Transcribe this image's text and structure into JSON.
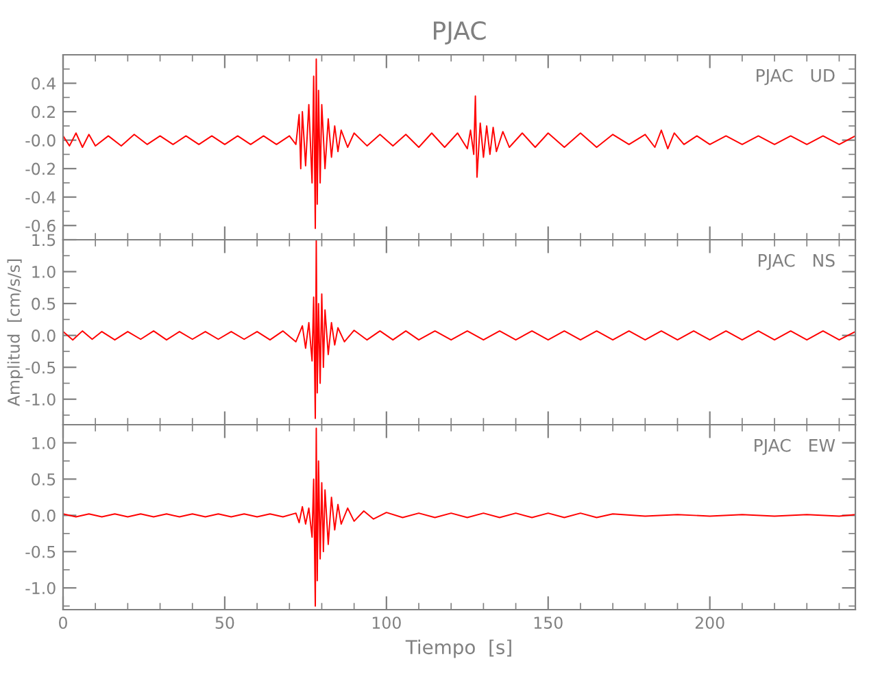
{
  "chart_data": [
    {
      "type": "line",
      "title": "PJAC",
      "annotations": [
        "PJAC   UD"
      ],
      "tick_labels": "y",
      "grid": false,
      "legend": false,
      "xlim": [
        0,
        245
      ],
      "xticks": [
        {
          "value": 0,
          "label": null
        },
        {
          "value": 50,
          "label": null
        },
        {
          "value": 100,
          "label": null
        },
        {
          "value": 150,
          "label": null
        },
        {
          "value": 200,
          "label": null
        }
      ],
      "ylim": [
        -0.7,
        0.6
      ],
      "yticks": [
        {
          "value": -0.6,
          "label": "-0.6"
        },
        {
          "value": -0.4,
          "label": "-0.4"
        },
        {
          "value": -0.2,
          "label": "-0.2"
        },
        {
          "value": 0.0,
          "label": "-0.0"
        },
        {
          "value": 0.2,
          "label": "0.2"
        },
        {
          "value": 0.4,
          "label": "0.4"
        }
      ],
      "series": [
        {
          "color": "#ff0000",
          "x": [
            0,
            2,
            4,
            6,
            8,
            10,
            14,
            18,
            22,
            26,
            30,
            34,
            38,
            42,
            46,
            50,
            54,
            58,
            62,
            66,
            70,
            72,
            73,
            73.5,
            74,
            75,
            76,
            77,
            77.5,
            78,
            78.3,
            78.6,
            79,
            79.5,
            80,
            81,
            82,
            83,
            84,
            85,
            86,
            88,
            90,
            94,
            98,
            102,
            106,
            110,
            114,
            118,
            122,
            125,
            126,
            127,
            127.5,
            128,
            129,
            130,
            131,
            132,
            133,
            134,
            136,
            138,
            142,
            146,
            150,
            155,
            160,
            165,
            170,
            175,
            180,
            183,
            185,
            187,
            189,
            192,
            196,
            200,
            205,
            210,
            215,
            220,
            225,
            230,
            235,
            240,
            245
          ],
          "values": [
            0.03,
            -0.04,
            0.05,
            -0.05,
            0.04,
            -0.04,
            0.03,
            -0.04,
            0.04,
            -0.03,
            0.03,
            -0.03,
            0.03,
            -0.03,
            0.03,
            -0.03,
            0.03,
            -0.03,
            0.03,
            -0.03,
            0.03,
            -0.03,
            0.18,
            -0.2,
            0.2,
            -0.18,
            0.25,
            -0.3,
            0.45,
            -0.62,
            0.57,
            -0.45,
            0.35,
            -0.3,
            0.25,
            -0.2,
            0.15,
            -0.12,
            0.1,
            -0.08,
            0.07,
            -0.05,
            0.05,
            -0.04,
            0.04,
            -0.04,
            0.04,
            -0.05,
            0.05,
            -0.05,
            0.05,
            -0.06,
            0.07,
            -0.1,
            0.31,
            -0.26,
            0.12,
            -0.12,
            0.1,
            -0.1,
            0.09,
            -0.08,
            0.06,
            -0.05,
            0.05,
            -0.05,
            0.05,
            -0.05,
            0.05,
            -0.05,
            0.04,
            -0.03,
            0.04,
            -0.05,
            0.07,
            -0.06,
            0.05,
            -0.03,
            0.03,
            -0.03,
            0.03,
            -0.03,
            0.03,
            -0.03,
            0.03,
            -0.03,
            0.03,
            -0.03,
            0.03
          ]
        }
      ]
    },
    {
      "type": "line",
      "ylabel": "Amplitud  [cm/s/s]",
      "annotations": [
        "PJAC   NS"
      ],
      "tick_labels": "y",
      "grid": false,
      "legend": false,
      "xlim": [
        0,
        245
      ],
      "xticks": [
        {
          "value": 0,
          "label": null
        },
        {
          "value": 50,
          "label": null
        },
        {
          "value": 100,
          "label": null
        },
        {
          "value": 150,
          "label": null
        },
        {
          "value": 200,
          "label": null
        }
      ],
      "ylim": [
        -1.4,
        1.5
      ],
      "yticks": [
        {
          "value": -1.0,
          "label": "-1.0"
        },
        {
          "value": -0.5,
          "label": "-0.5"
        },
        {
          "value": 0.0,
          "label": "0.0"
        },
        {
          "value": 0.5,
          "label": "0.5"
        },
        {
          "value": 1.0,
          "label": "1.0"
        },
        {
          "value": 1.5,
          "label": "1.5"
        }
      ],
      "series": [
        {
          "color": "#ff0000",
          "x": [
            0,
            3,
            6,
            9,
            12,
            16,
            20,
            24,
            28,
            32,
            36,
            40,
            44,
            48,
            52,
            56,
            60,
            64,
            68,
            72,
            74,
            75,
            76,
            77,
            77.5,
            78,
            78.3,
            78.6,
            79,
            79.5,
            80,
            80.5,
            81,
            82,
            83,
            84,
            85,
            87,
            90,
            94,
            98,
            102,
            106,
            110,
            115,
            120,
            125,
            130,
            135,
            140,
            145,
            150,
            155,
            160,
            165,
            170,
            175,
            180,
            185,
            190,
            195,
            200,
            205,
            210,
            215,
            220,
            225,
            230,
            235,
            240,
            245
          ],
          "values": [
            0.06,
            -0.07,
            0.07,
            -0.06,
            0.06,
            -0.07,
            0.06,
            -0.06,
            0.07,
            -0.07,
            0.06,
            -0.06,
            0.06,
            -0.06,
            0.06,
            -0.06,
            0.06,
            -0.07,
            0.07,
            -0.1,
            0.15,
            -0.2,
            0.2,
            -0.4,
            0.6,
            -1.3,
            1.5,
            -0.9,
            0.5,
            -0.75,
            0.65,
            -0.5,
            0.4,
            -0.3,
            0.2,
            -0.15,
            0.12,
            -0.1,
            0.08,
            -0.07,
            0.07,
            -0.07,
            0.07,
            -0.07,
            0.07,
            -0.07,
            0.07,
            -0.07,
            0.07,
            -0.07,
            0.07,
            -0.07,
            0.07,
            -0.07,
            0.07,
            -0.07,
            0.07,
            -0.07,
            0.07,
            -0.07,
            0.07,
            -0.07,
            0.07,
            -0.07,
            0.07,
            -0.07,
            0.07,
            -0.07,
            0.07,
            -0.07,
            0.06
          ]
        }
      ]
    },
    {
      "type": "line",
      "xlabel": "Tiempo  [s]",
      "annotations": [
        "PJAC   EW"
      ],
      "grid": false,
      "legend": false,
      "xlim": [
        0,
        245
      ],
      "xticks": [
        0,
        50,
        100,
        150,
        200
      ],
      "ylim": [
        -1.3,
        1.25
      ],
      "yticks": [
        {
          "value": -1.0,
          "label": "-1.0"
        },
        {
          "value": -0.5,
          "label": "-0.5"
        },
        {
          "value": 0.0,
          "label": "0.0"
        },
        {
          "value": 0.5,
          "label": "0.5"
        },
        {
          "value": 1.0,
          "label": "1.0"
        }
      ],
      "series": [
        {
          "color": "#ff0000",
          "x": [
            0,
            4,
            8,
            12,
            16,
            20,
            24,
            28,
            32,
            36,
            40,
            44,
            48,
            52,
            56,
            60,
            64,
            68,
            72,
            73,
            74,
            75,
            76,
            77,
            77.5,
            78,
            78.3,
            78.6,
            79,
            79.5,
            80,
            80.5,
            81,
            82,
            83,
            84,
            85,
            86,
            88,
            90,
            93,
            96,
            100,
            105,
            110,
            115,
            120,
            125,
            130,
            135,
            140,
            145,
            150,
            155,
            160,
            165,
            170,
            180,
            190,
            200,
            210,
            220,
            230,
            240,
            245
          ],
          "values": [
            0.02,
            -0.02,
            0.02,
            -0.02,
            0.02,
            -0.02,
            0.02,
            -0.02,
            0.02,
            -0.02,
            0.02,
            -0.02,
            0.02,
            -0.02,
            0.02,
            -0.02,
            0.02,
            -0.02,
            0.03,
            -0.1,
            0.12,
            -0.12,
            0.1,
            -0.3,
            0.5,
            -1.25,
            1.2,
            -0.9,
            0.75,
            -0.6,
            0.45,
            -0.5,
            0.35,
            -0.4,
            0.25,
            -0.2,
            0.15,
            -0.12,
            0.1,
            -0.08,
            0.06,
            -0.05,
            0.04,
            -0.03,
            0.03,
            -0.03,
            0.03,
            -0.03,
            0.03,
            -0.03,
            0.03,
            -0.03,
            0.03,
            -0.03,
            0.03,
            -0.03,
            0.02,
            -0.01,
            0.01,
            -0.01,
            0.01,
            -0.01,
            0.01,
            -0.01,
            0.01
          ]
        }
      ]
    }
  ]
}
